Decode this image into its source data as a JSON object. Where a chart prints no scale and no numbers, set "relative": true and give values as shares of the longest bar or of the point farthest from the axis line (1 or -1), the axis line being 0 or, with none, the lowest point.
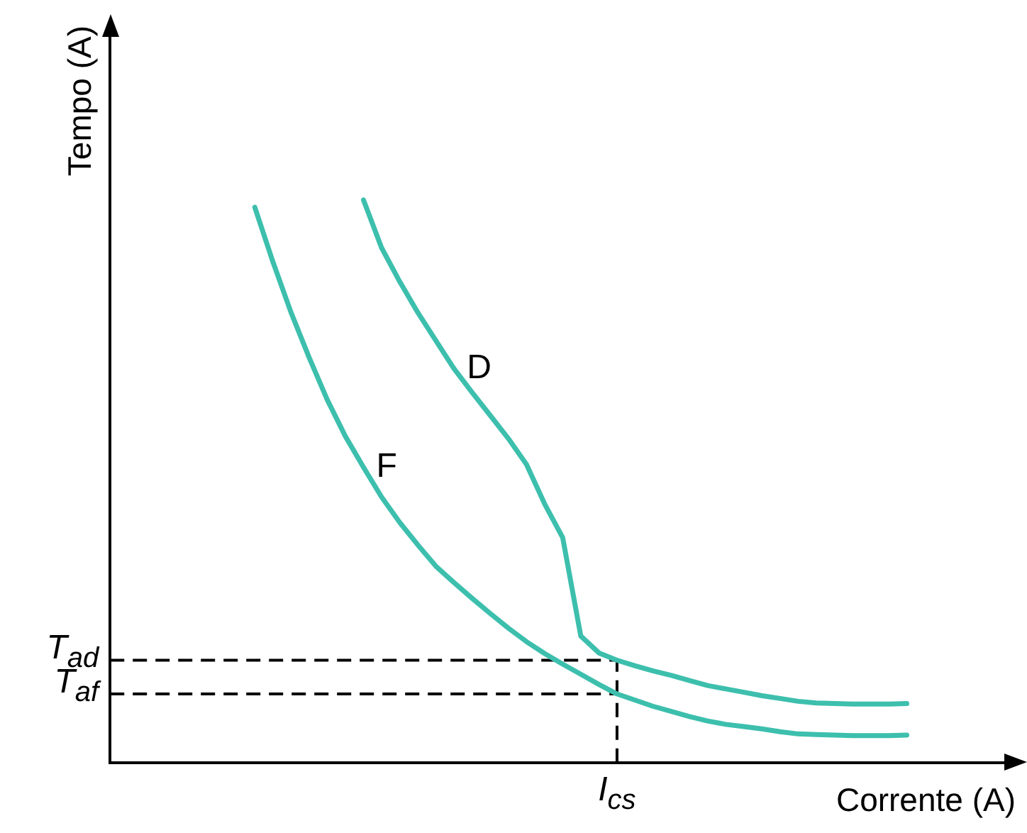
{
  "chart_data": {
    "type": "line",
    "relative": true,
    "xlabel": "Corrente (A)",
    "ylabel": "Tempo (A)",
    "legend": false,
    "grid": false,
    "marker": "none",
    "categories": [
      null,
      null,
      null,
      null,
      null,
      null,
      null,
      null,
      null,
      null,
      null,
      null,
      null,
      null,
      null,
      null,
      null,
      null,
      null,
      null,
      null,
      null,
      null,
      null,
      null,
      null,
      null,
      null,
      null,
      null,
      null,
      null,
      null,
      null,
      null,
      null,
      null
    ],
    "series": [
      {
        "name": "F",
        "color": "#3dbfad",
        "values": [
          0.987,
          0.89,
          0.8,
          0.72,
          0.645,
          0.58,
          0.525,
          0.472,
          0.427,
          0.387,
          0.349,
          0.32,
          0.292,
          0.265,
          0.239,
          0.215,
          0.194,
          0.175,
          0.157,
          0.139,
          0.122,
          0.111,
          0.1,
          0.091,
          0.082,
          0.074,
          0.068,
          0.064,
          0.06,
          0.055,
          0.051,
          0.05,
          0.049,
          0.048,
          0.048,
          0.048,
          0.049
        ]
      },
      {
        "name": "D",
        "color": "#3dbfad",
        "values": [
          null,
          null,
          null,
          null,
          null,
          null,
          1,
          0.915,
          0.855,
          0.8,
          0.75,
          0.7,
          0.658,
          0.617,
          0.576,
          0.53,
          0.46,
          0.4,
          0.225,
          0.195,
          0.182,
          0.172,
          0.163,
          0.155,
          0.146,
          0.137,
          0.131,
          0.125,
          0.119,
          0.114,
          0.109,
          0.106,
          0.105,
          0.104,
          0.104,
          0.104,
          0.105
        ]
      }
    ],
    "ref_lines": [
      {
        "axis": "y",
        "value": 0.182,
        "label": "T$_{ad}$",
        "line_style": "dashed"
      },
      {
        "axis": "y",
        "value": 0.122,
        "label": "T$_{af}$",
        "line_style": "dashed"
      },
      {
        "axis": "x",
        "value": null,
        "label": "I$_{cs}$",
        "line_style": "dashed"
      }
    ]
  }
}
